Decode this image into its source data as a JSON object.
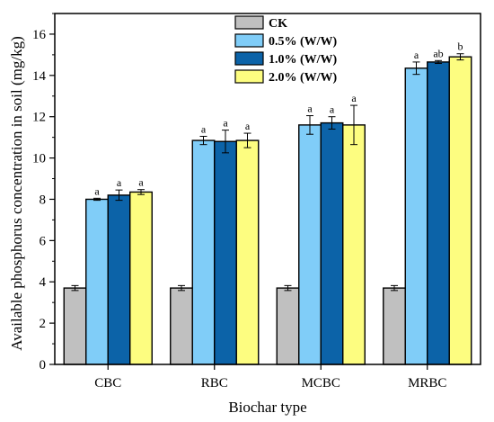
{
  "chart_data": {
    "type": "bar",
    "title": "",
    "xlabel": "Biochar type",
    "ylabel": "Available phosphorus concentration in soil (mg/kg)",
    "categories": [
      "CBC",
      "RBC",
      "MCBC",
      "MRBC"
    ],
    "ylim": [
      0,
      17
    ],
    "yticks": [
      0,
      2,
      4,
      6,
      8,
      10,
      12,
      14,
      16
    ],
    "grid": false,
    "legend_position": "top-left",
    "series": [
      {
        "name": "CK",
        "color": "#c0c0c0",
        "values": [
          3.7,
          3.7,
          3.7,
          3.7
        ],
        "errors": [
          0.12,
          0.12,
          0.12,
          0.12
        ],
        "labels": [
          "",
          "",
          "",
          ""
        ]
      },
      {
        "name": "0.5% (W/W)",
        "color": "#80cdf8",
        "values": [
          8.0,
          10.85,
          11.6,
          14.35
        ],
        "errors": [
          0.05,
          0.2,
          0.45,
          0.3
        ],
        "labels": [
          "a",
          "a",
          "a",
          "a"
        ]
      },
      {
        "name": "1.0% (W/W)",
        "color": "#0c63a8",
        "values": [
          8.2,
          10.8,
          11.7,
          14.65
        ],
        "errors": [
          0.25,
          0.55,
          0.3,
          0.07
        ],
        "labels": [
          "a",
          "a",
          "a",
          "ab"
        ]
      },
      {
        "name": "2.0% (W/W)",
        "color": "#fdfd80",
        "values": [
          8.35,
          10.85,
          11.6,
          14.9
        ],
        "errors": [
          0.12,
          0.35,
          0.95,
          0.15
        ],
        "labels": [
          "a",
          "a",
          "a",
          "b"
        ]
      }
    ]
  }
}
